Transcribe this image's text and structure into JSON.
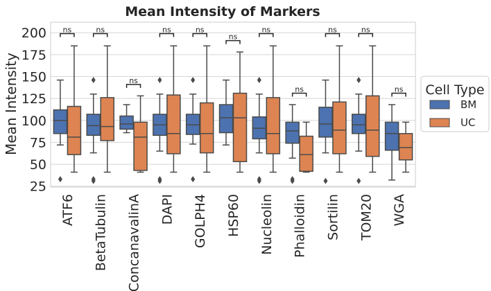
{
  "chart_data": {
    "type": "box",
    "title": "Mean Intensity of Markers",
    "xlabel": "",
    "ylabel": "Mean Intensity",
    "ylim": [
      24,
      212
    ],
    "yticks": [
      25,
      50,
      75,
      100,
      125,
      150,
      175,
      200
    ],
    "grid": "horizontal",
    "categories": [
      "ATF6",
      "BetaTubulin",
      "ConcanavalinA",
      "DAPI",
      "GOLPH4",
      "HSP60",
      "Nucleolin",
      "Phalloidin",
      "Sortilin",
      "TOM20",
      "WGA"
    ],
    "legend": {
      "title": "Cell Type",
      "placement": "right",
      "entries": [
        "BM",
        "UC"
      ]
    },
    "colors": {
      "BM": "#4c72b0",
      "UC": "#dd8452",
      "line": "#4a4a4a",
      "grid": "#d5d5d5"
    },
    "series": [
      {
        "name": "BM",
        "boxes": [
          {
            "whislo": 72,
            "q1": 85,
            "med": 100,
            "q3": 112,
            "whishi": 146,
            "fliers": [
              33
            ]
          },
          {
            "whislo": 63,
            "q1": 83,
            "med": 94,
            "q3": 107,
            "whishi": 130,
            "fliers": [
              146,
              33,
              31
            ]
          },
          {
            "whislo": 86,
            "q1": 90,
            "med": 96,
            "q3": 105,
            "whishi": 118,
            "fliers": []
          },
          {
            "whislo": 65,
            "q1": 83,
            "med": 95,
            "q3": 107,
            "whishi": 130,
            "fliers": [
              146,
              33,
              31
            ]
          },
          {
            "whislo": 73,
            "q1": 84,
            "med": 95,
            "q3": 107,
            "whishi": 130,
            "fliers": [
              146,
              33
            ]
          },
          {
            "whislo": 72,
            "q1": 86,
            "med": 103,
            "q3": 118,
            "whishi": 146,
            "fliers": []
          },
          {
            "whislo": 63,
            "q1": 79,
            "med": 91,
            "q3": 104,
            "whishi": 130,
            "fliers": [
              146,
              33,
              31
            ]
          },
          {
            "whislo": 57,
            "q1": 74,
            "med": 88,
            "q3": 98,
            "whishi": 118,
            "fliers": [
              33,
              31
            ]
          },
          {
            "whislo": 63,
            "q1": 81,
            "med": 96,
            "q3": 115,
            "whishi": 146,
            "fliers": [
              31
            ]
          },
          {
            "whislo": 65,
            "q1": 85,
            "med": 95,
            "q3": 107,
            "whishi": 130,
            "fliers": [
              146,
              31
            ]
          },
          {
            "whislo": 32,
            "q1": 66,
            "med": 85,
            "q3": 98,
            "whishi": 118,
            "fliers": []
          }
        ]
      },
      {
        "name": "UC",
        "boxes": [
          {
            "whislo": 41,
            "q1": 61,
            "med": 81,
            "q3": 116,
            "whishi": 185,
            "fliers": []
          },
          {
            "whislo": 41,
            "q1": 77,
            "med": 93,
            "q3": 126,
            "whishi": 185,
            "fliers": []
          },
          {
            "whislo": 41,
            "q1": 43,
            "med": 81,
            "q3": 98,
            "whishi": 128,
            "fliers": []
          },
          {
            "whislo": 41,
            "q1": 62,
            "med": 85,
            "q3": 129,
            "whishi": 185,
            "fliers": []
          },
          {
            "whislo": 41,
            "q1": 63,
            "med": 85,
            "q3": 120,
            "whishi": 185,
            "fliers": []
          },
          {
            "whislo": 41,
            "q1": 53,
            "med": 103,
            "q3": 131,
            "whishi": 178,
            "fliers": []
          },
          {
            "whislo": 41,
            "q1": 62,
            "med": 85,
            "q3": 126,
            "whishi": 185,
            "fliers": []
          },
          {
            "whislo": 41,
            "q1": 42,
            "med": 61,
            "q3": 82,
            "whishi": 98,
            "fliers": []
          },
          {
            "whislo": 41,
            "q1": 62,
            "med": 89,
            "q3": 121,
            "whishi": 185,
            "fliers": []
          },
          {
            "whislo": 41,
            "q1": 59,
            "med": 89,
            "q3": 128,
            "whishi": 185,
            "fliers": []
          },
          {
            "whislo": 41,
            "q1": 55,
            "med": 69,
            "q3": 85,
            "whishi": 98,
            "fliers": []
          }
        ]
      }
    ],
    "annotations": [
      {
        "category": "ATF6",
        "text": "ns",
        "y": 199
      },
      {
        "category": "BetaTubulin",
        "text": "ns",
        "y": 199
      },
      {
        "category": "ConcanavalinA",
        "text": "ns",
        "y": 141
      },
      {
        "category": "DAPI",
        "text": "ns",
        "y": 199
      },
      {
        "category": "GOLPH4",
        "text": "ns",
        "y": 199
      },
      {
        "category": "HSP60",
        "text": "ns",
        "y": 191
      },
      {
        "category": "Nucleolin",
        "text": "ns",
        "y": 199
      },
      {
        "category": "Phalloidin",
        "text": "ns",
        "y": 131
      },
      {
        "category": "Sortilin",
        "text": "ns",
        "y": 199
      },
      {
        "category": "TOM20",
        "text": "ns",
        "y": 199
      },
      {
        "category": "WGA",
        "text": "ns",
        "y": 131
      }
    ]
  }
}
